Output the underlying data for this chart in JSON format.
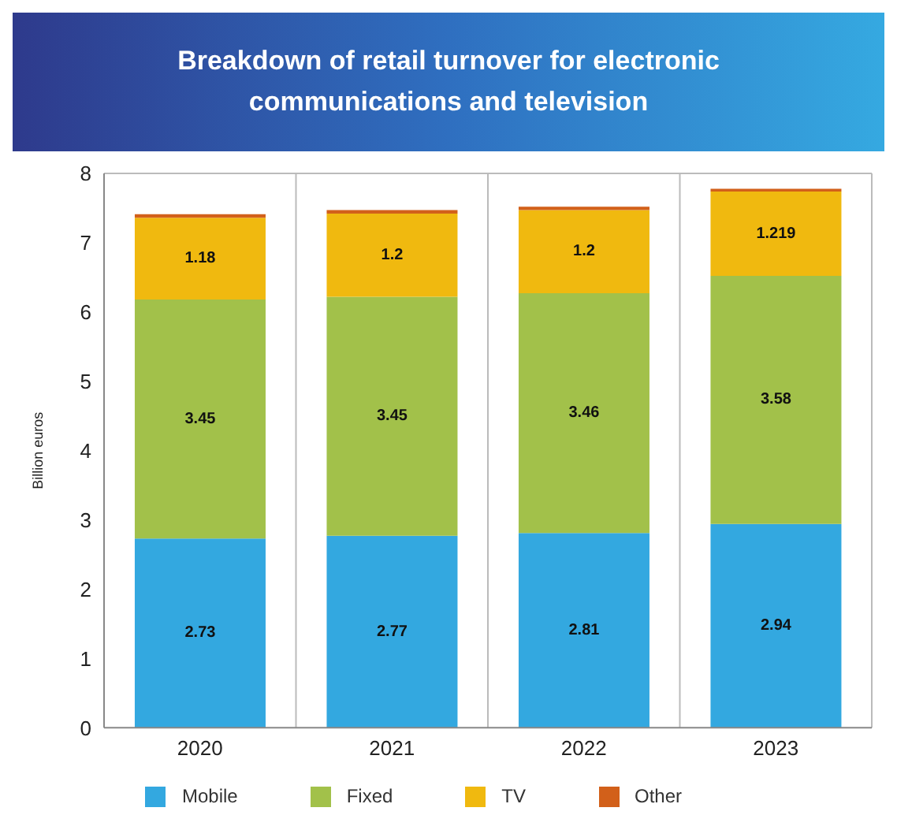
{
  "chart_data": {
    "type": "bar",
    "title": "Breakdown of retail turnover for electronic communications and television",
    "ylabel": "Billion euros",
    "categories": [
      "2020",
      "2021",
      "2022",
      "2023"
    ],
    "stacked": true,
    "series": [
      {
        "name": "Mobile",
        "color": "#33a8e0",
        "values": [
          2.73,
          2.77,
          2.81,
          2.94
        ],
        "value_labels": [
          "2.73",
          "2.77",
          "2.81",
          "2.94"
        ]
      },
      {
        "name": "Fixed",
        "color": "#a2c14a",
        "values": [
          3.45,
          3.45,
          3.46,
          3.58
        ],
        "value_labels": [
          "3.45",
          "3.45",
          "3.46",
          "3.58"
        ]
      },
      {
        "name": "TV",
        "color": "#f0b90f",
        "values": [
          1.18,
          1.2,
          1.2,
          1.219
        ],
        "value_labels": [
          "1.18",
          "1.2",
          "1.2",
          "1.219"
        ]
      },
      {
        "name": "Other",
        "color": "#d2601a",
        "values": [
          0.05,
          0.05,
          0.05,
          0.04
        ]
      }
    ],
    "ylim": [
      0,
      8
    ],
    "yticks": [
      0,
      1,
      2,
      3,
      4,
      5,
      6,
      7,
      8
    ],
    "grid": "x",
    "legend": "bottom"
  }
}
